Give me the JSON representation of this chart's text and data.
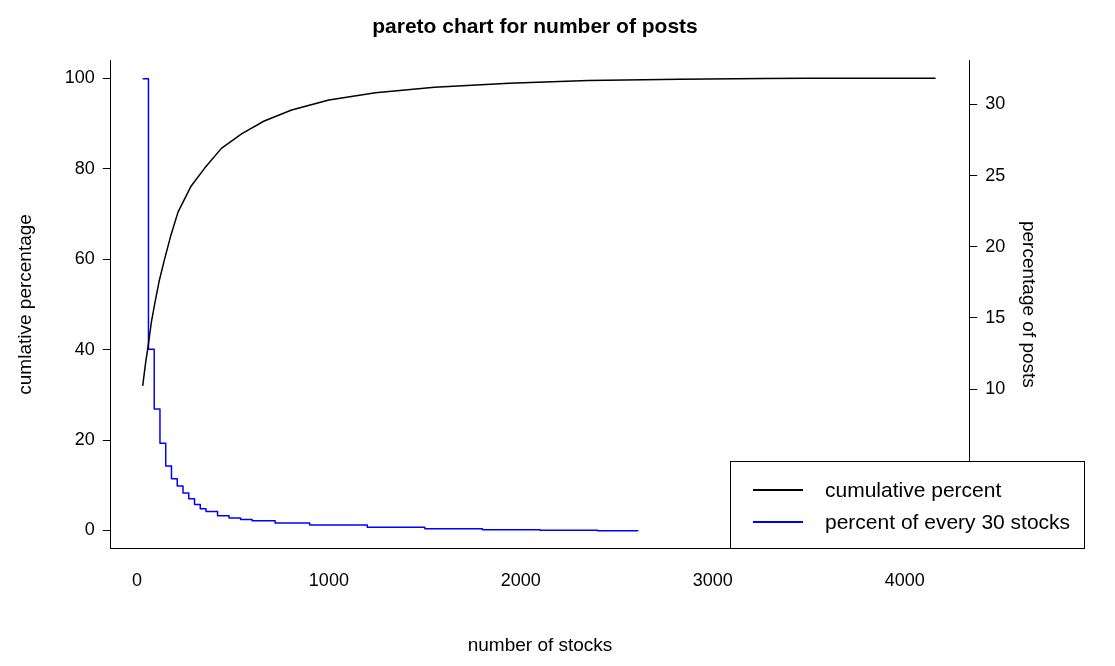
{
  "chart_data": {
    "type": "line",
    "title": "pareto chart for number of posts",
    "xlabel": "number of stocks",
    "ylabel": "cumlative percentage",
    "y2label": "percentage of posts",
    "xlim": [
      -136,
      4336
    ],
    "xticks": [
      0,
      1000,
      2000,
      3000,
      4000
    ],
    "ylim": [
      -4,
      104
    ],
    "yticks": [
      0,
      20,
      40,
      60,
      80,
      100
    ],
    "y2lim": [
      -1.2,
      33.1
    ],
    "y2ticks": [
      10,
      15,
      20,
      25,
      30
    ],
    "grid": false,
    "legend": "bottom right",
    "marker": "none",
    "line_style": "solid",
    "series": [
      {
        "name": "cumulative percent",
        "type": "line",
        "color": "#000000",
        "x": [
          30,
          45,
          57,
          75,
          92,
          115,
          144,
          175,
          214,
          280,
          354,
          440,
          545,
          660,
          806,
          1000,
          1243,
          1550,
          1939,
          2350,
          2830,
          3500,
          4161
        ],
        "values": [
          32,
          37,
          40.4,
          46,
          50,
          55,
          60,
          65,
          70.4,
          76,
          80.2,
          84.5,
          87.7,
          90.5,
          93,
          95.2,
          96.8,
          98,
          98.9,
          99.5,
          99.8,
          100,
          100
        ]
      },
      {
        "name": "percent of every 30 stocks",
        "type": "step",
        "axis": "y2",
        "color": "#0000ff",
        "x": [
          30,
          60,
          90,
          120,
          150,
          180,
          210,
          240,
          270,
          300,
          330,
          360,
          420,
          480,
          540,
          600,
          720,
          900,
          1200,
          1500,
          1800,
          2100,
          2400,
          2610
        ],
        "values": [
          31.8,
          12.8,
          8.6,
          6.2,
          4.6,
          3.7,
          3.2,
          2.7,
          2.3,
          1.9,
          1.6,
          1.4,
          1.1,
          0.95,
          0.85,
          0.75,
          0.6,
          0.45,
          0.3,
          0.2,
          0.12,
          0.08,
          0.05,
          0.04
        ]
      }
    ]
  }
}
